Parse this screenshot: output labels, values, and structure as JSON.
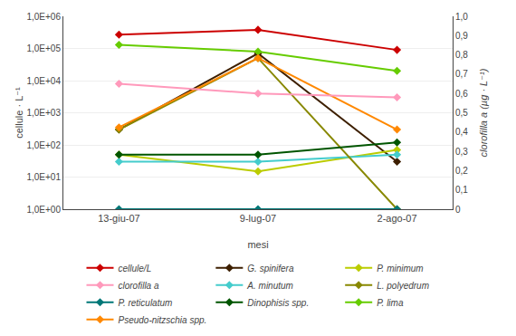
{
  "chart_data": {
    "type": "line",
    "categories": [
      "13-giu-07",
      "9-lug-07",
      "2-ago-07"
    ],
    "xlabel": "mesi",
    "ylabel": "cellule · L⁻¹",
    "y2label": "clorofilla a (µg · L⁻¹)",
    "log": "y",
    "ylim": [
      1,
      1000000
    ],
    "yticks": [
      {
        "value": 1,
        "label": "1,0E+00"
      },
      {
        "value": 10,
        "label": "1,0E+01"
      },
      {
        "value": 100,
        "label": "1,0E+02"
      },
      {
        "value": 1000,
        "label": "1,0E+03"
      },
      {
        "value": 10000,
        "label": "1,0E+04"
      },
      {
        "value": 100000,
        "label": "1,0E+05"
      },
      {
        "value": 1000000,
        "label": "1,0E+06"
      }
    ],
    "y2lim": [
      0,
      1.0
    ],
    "y2ticks": [
      0,
      {
        "value": 0.1,
        "label": "0,1"
      },
      {
        "value": 0.2,
        "label": "0,2"
      },
      {
        "value": 0.3,
        "label": "0,3"
      },
      {
        "value": 0.4,
        "label": "0,4"
      },
      {
        "value": 0.5,
        "label": "0,5"
      },
      {
        "value": 0.6,
        "label": "0,6"
      },
      {
        "value": 0.7,
        "label": "0,7"
      },
      {
        "value": 0.8,
        "label": "0,8"
      },
      {
        "value": 0.9,
        "label": "0,9"
      },
      {
        "value": 1.0,
        "label": "1,0"
      }
    ],
    "grid": true,
    "legend": "bottom",
    "marker": "diamond",
    "series": [
      {
        "name": "cellule/L",
        "color": "#CC0000",
        "values": [
          270000,
          380000,
          90000
        ]
      },
      {
        "name": "G. spinifera",
        "color": "#3D1F00",
        "values": [
          300,
          70000,
          30
        ]
      },
      {
        "name": "P. minimum",
        "color": "#BBCC00",
        "values": [
          50,
          15,
          70
        ]
      },
      {
        "name": "clorofilla a",
        "color": "#FF99BB",
        "values": [
          0.65,
          0.6,
          0.58
        ],
        "axis": "y2"
      },
      {
        "name": "A. minutum",
        "color": "#44CCCC",
        "values": [
          30,
          30,
          50
        ]
      },
      {
        "name": "L. polyedrum",
        "color": "#888800",
        "values": [
          300,
          50000,
          1
        ]
      },
      {
        "name": "P. reticulatum",
        "color": "#007777",
        "values": [
          1,
          1,
          1
        ]
      },
      {
        "name": "Dinophisis spp.",
        "color": "#005500",
        "values": [
          50,
          50,
          120
        ]
      },
      {
        "name": "P. lima",
        "color": "#66CC00",
        "values": [
          130000,
          80000,
          20000
        ]
      },
      {
        "name": "Pseudo-nitzschia spp.",
        "color": "#FF8800",
        "values": [
          350,
          50000,
          300
        ]
      }
    ]
  }
}
